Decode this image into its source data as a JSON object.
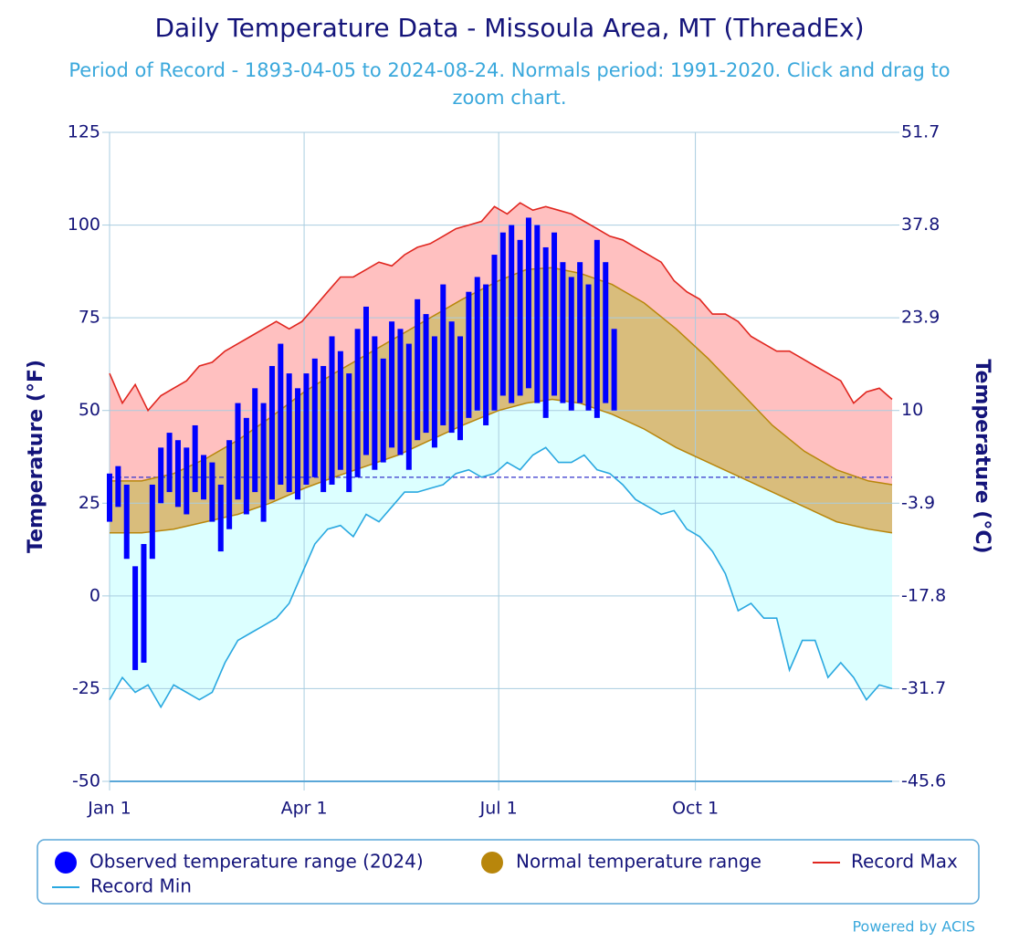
{
  "chart_data": {
    "type": "temperature-range",
    "title": "Daily Temperature Data - Missoula Area, MT (ThreadEx)",
    "subtitle": "Period of Record - 1893-04-05 to 2024-08-24. Normals period: 1991-2020. Click and drag to zoom chart.",
    "ylabel": "Temperature (°F)",
    "y2label": "Temperature (°C)",
    "xlim": [
      0,
      366
    ],
    "xticks": [
      {
        "value": 0,
        "label": "Jan 1"
      },
      {
        "value": 91,
        "label": "Apr 1"
      },
      {
        "value": 182,
        "label": "Jul 1"
      },
      {
        "value": 274,
        "label": "Oct 1"
      }
    ],
    "ylim": [
      -50,
      125
    ],
    "yticks": [
      -50,
      -25,
      0,
      25,
      50,
      75,
      100,
      125
    ],
    "y2lim": [
      -45.6,
      51.7
    ],
    "y2ticks": [
      -45.6,
      -31.7,
      -17.8,
      -3.9,
      10,
      23.9,
      37.8,
      51.7
    ],
    "reference_line": 32,
    "grid": true,
    "series": [
      {
        "name": "Observed temperature range (2024)",
        "color": "#0000ff",
        "x": [
          0,
          4,
          8,
          12,
          16,
          20,
          24,
          28,
          32,
          36,
          40,
          44,
          48,
          52,
          56,
          60,
          64,
          68,
          72,
          76,
          80,
          84,
          88,
          92,
          96,
          100,
          104,
          108,
          112,
          116,
          120,
          124,
          128,
          132,
          136,
          140,
          144,
          148,
          152,
          156,
          160,
          164,
          168,
          172,
          176,
          180,
          184,
          188,
          192,
          196,
          200,
          204,
          208,
          212,
          216,
          220,
          224,
          228,
          232,
          236
        ],
        "low": [
          20,
          24,
          10,
          -20,
          -18,
          10,
          25,
          28,
          24,
          22,
          28,
          26,
          20,
          12,
          18,
          26,
          22,
          28,
          20,
          26,
          30,
          28,
          26,
          30,
          32,
          28,
          30,
          34,
          28,
          32,
          38,
          34,
          36,
          40,
          38,
          34,
          42,
          44,
          40,
          46,
          44,
          42,
          48,
          50,
          46,
          50,
          54,
          52,
          54,
          56,
          52,
          48,
          54,
          52,
          50,
          52,
          50,
          48,
          52,
          50
        ],
        "high": [
          33,
          35,
          30,
          8,
          14,
          30,
          40,
          44,
          42,
          40,
          46,
          38,
          36,
          30,
          42,
          52,
          48,
          56,
          52,
          62,
          68,
          60,
          56,
          60,
          64,
          62,
          70,
          66,
          60,
          72,
          78,
          70,
          64,
          74,
          72,
          68,
          80,
          76,
          70,
          84,
          74,
          70,
          82,
          86,
          84,
          92,
          98,
          100,
          96,
          102,
          100,
          94,
          98,
          90,
          86,
          90,
          84,
          96,
          90,
          72
        ]
      },
      {
        "name": "Normal temperature range",
        "color": "#b8860b",
        "x": [
          0,
          15,
          30,
          45,
          60,
          75,
          91,
          105,
          120,
          135,
          150,
          165,
          182,
          195,
          207,
          220,
          235,
          250,
          265,
          280,
          295,
          310,
          325,
          340,
          355,
          366
        ],
        "low": [
          17,
          17,
          18,
          20,
          22,
          25,
          29,
          32,
          35,
          38,
          42,
          46,
          50,
          52,
          53,
          52,
          49,
          45,
          40,
          36,
          32,
          28,
          24,
          20,
          18,
          17
        ],
        "high": [
          31,
          31,
          33,
          37,
          42,
          48,
          55,
          60,
          65,
          70,
          75,
          80,
          85,
          88,
          88.5,
          87,
          84,
          79,
          72,
          64,
          55,
          46,
          39,
          34,
          31,
          30
        ]
      },
      {
        "name": "Record Max",
        "color": "#e0261f",
        "x": [
          0,
          6,
          12,
          18,
          24,
          30,
          36,
          42,
          48,
          54,
          60,
          66,
          72,
          78,
          84,
          90,
          96,
          102,
          108,
          114,
          120,
          126,
          132,
          138,
          144,
          150,
          156,
          162,
          168,
          174,
          180,
          186,
          192,
          198,
          204,
          210,
          216,
          222,
          228,
          234,
          240,
          246,
          252,
          258,
          264,
          270,
          276,
          282,
          288,
          294,
          300,
          306,
          312,
          318,
          324,
          330,
          336,
          342,
          348,
          354,
          360,
          366
        ],
        "values": [
          60,
          52,
          57,
          50,
          54,
          56,
          58,
          62,
          63,
          66,
          68,
          70,
          72,
          74,
          72,
          74,
          78,
          82,
          86,
          86,
          88,
          90,
          89,
          92,
          94,
          95,
          97,
          99,
          100,
          101,
          105,
          103,
          106,
          104,
          105,
          104,
          103,
          101,
          99,
          97,
          96,
          94,
          92,
          90,
          85,
          82,
          80,
          76,
          76,
          74,
          70,
          68,
          66,
          66,
          64,
          62,
          60,
          58,
          52,
          55,
          56,
          53
        ]
      },
      {
        "name": "Record Min",
        "color": "#29a8e0",
        "x": [
          0,
          6,
          12,
          18,
          24,
          30,
          36,
          42,
          48,
          54,
          60,
          66,
          72,
          78,
          84,
          90,
          96,
          102,
          108,
          114,
          120,
          126,
          132,
          138,
          144,
          150,
          156,
          162,
          168,
          174,
          180,
          186,
          192,
          198,
          204,
          210,
          216,
          222,
          228,
          234,
          240,
          246,
          252,
          258,
          264,
          270,
          276,
          282,
          288,
          294,
          300,
          306,
          312,
          318,
          324,
          330,
          336,
          342,
          348,
          354,
          360,
          366
        ],
        "values": [
          -28,
          -22,
          -26,
          -24,
          -30,
          -24,
          -26,
          -28,
          -26,
          -18,
          -12,
          -10,
          -8,
          -6,
          -2,
          6,
          14,
          18,
          19,
          16,
          22,
          20,
          24,
          28,
          28,
          29,
          30,
          33,
          34,
          32,
          33,
          36,
          34,
          38,
          40,
          36,
          36,
          38,
          34,
          33,
          30,
          26,
          24,
          22,
          23,
          18,
          16,
          12,
          6,
          -4,
          -2,
          -6,
          -6,
          -20,
          -12,
          -12,
          -22,
          -18,
          -22,
          -28,
          -24,
          -25
        ]
      }
    ],
    "credit": "Powered by ACIS"
  }
}
